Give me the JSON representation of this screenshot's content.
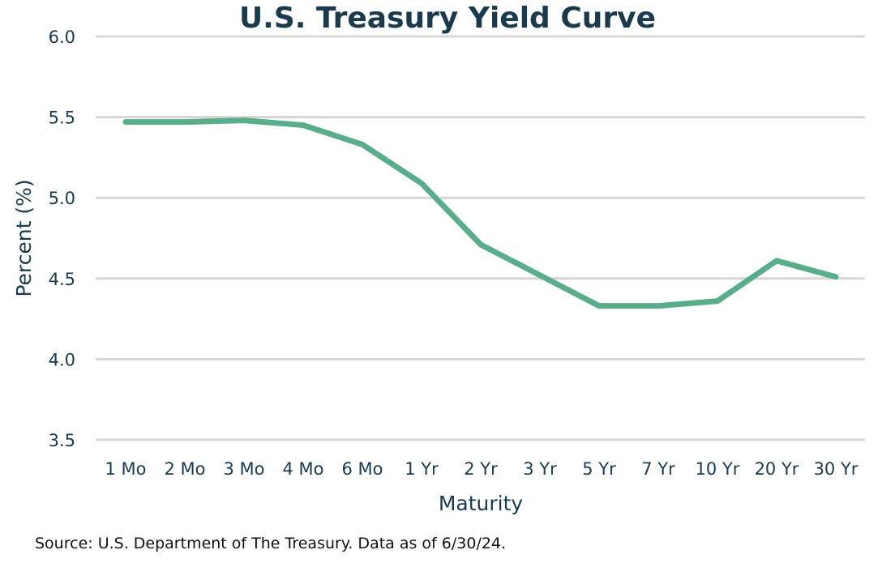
{
  "chart_data": {
    "type": "line",
    "title": "U.S. Treasury Yield Curve",
    "xlabel": "Maturity",
    "ylabel": "Percent (%)",
    "categories": [
      "1 Mo",
      "2 Mo",
      "3 Mo",
      "4 Mo",
      "6 Mo",
      "1 Yr",
      "2 Yr",
      "3 Yr",
      "5 Yr",
      "7 Yr",
      "10 Yr",
      "20 Yr",
      "30 Yr"
    ],
    "series": [
      {
        "name": "Yield",
        "values": [
          5.47,
          5.47,
          5.48,
          5.45,
          5.33,
          5.09,
          4.71,
          4.52,
          4.33,
          4.33,
          4.36,
          4.61,
          4.51
        ]
      }
    ],
    "ylim": [
      3.5,
      6.0
    ],
    "yticks": [
      "3.5",
      "4.0",
      "4.5",
      "5.0",
      "5.5",
      "6.0"
    ],
    "ytick_values": [
      3.5,
      4.0,
      4.5,
      5.0,
      5.5,
      6.0
    ],
    "grid": true,
    "legend": "none",
    "line_color": "#5aad8a",
    "grid_color": "#d6d6d6",
    "text_color": "#1b3a4b"
  },
  "source": "Source: U.S. Department of The Treasury. Data as of 6/30/24."
}
